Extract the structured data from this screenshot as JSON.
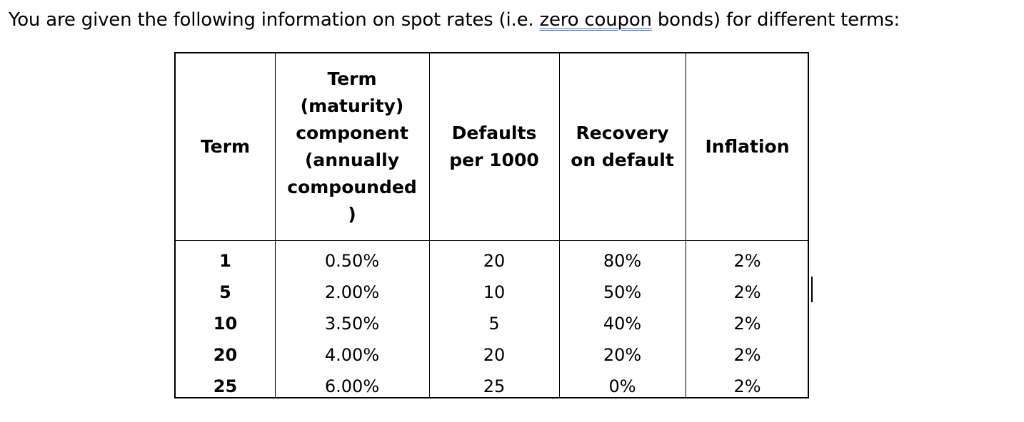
{
  "intro": {
    "before": "You are given the following information on spot rates (i.e. ",
    "flagged": "zero coupon",
    "after": " bonds) for different terms:"
  },
  "table": {
    "headers": [
      [
        "Term"
      ],
      [
        "Term",
        "(maturity)",
        "component",
        "(annually",
        "compounded",
        ")"
      ],
      [
        "Defaults",
        "per 1000"
      ],
      [
        "Recovery",
        "on default"
      ],
      [
        "Inflation"
      ]
    ],
    "rows": [
      [
        "1",
        "0.50%",
        "20",
        "80%",
        "2%"
      ],
      [
        "5",
        "2.00%",
        "10",
        "50%",
        "2%"
      ],
      [
        "10",
        "3.50%",
        "5",
        "40%",
        "2%"
      ],
      [
        "20",
        "4.00%",
        "20",
        "20%",
        "2%"
      ],
      [
        "25",
        "6.00%",
        "25",
        "0%",
        "2%"
      ]
    ]
  }
}
